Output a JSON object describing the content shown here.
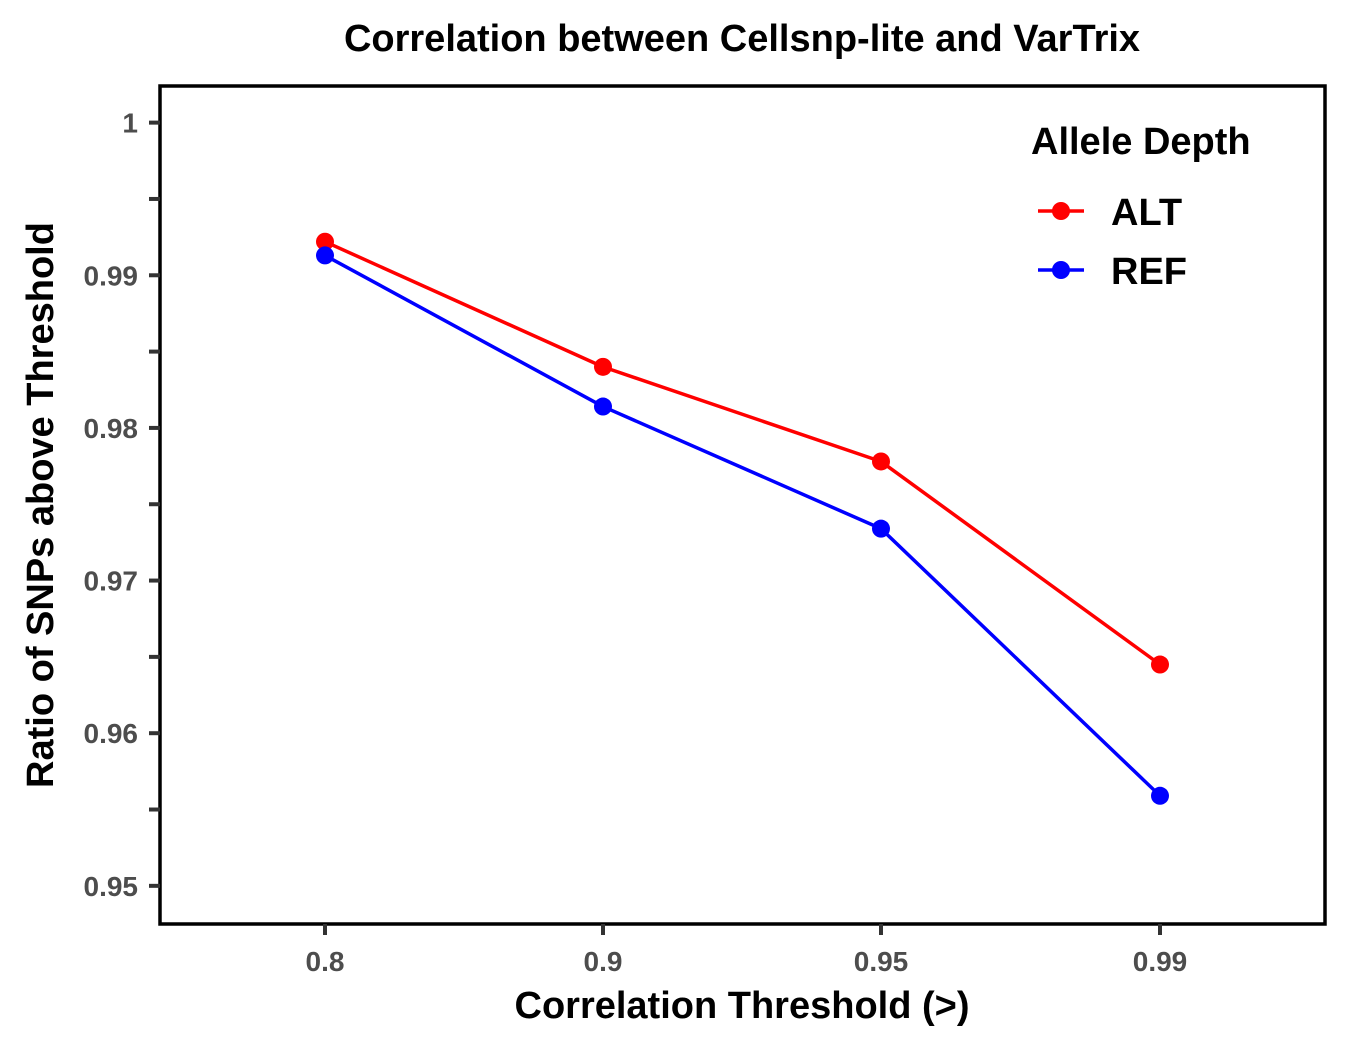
{
  "chart_data": {
    "type": "line",
    "title": "Correlation between Cellsnp-lite and VarTrix",
    "xlabel": "Correlation Threshold (>)",
    "ylabel": "Ratio of SNPs above Threshold",
    "categories": [
      "0.8",
      "0.9",
      "0.95",
      "0.99"
    ],
    "ylim": [
      0.9475,
      1.0024
    ],
    "y_ticks": [
      {
        "value": 0.95,
        "label": "0.95"
      },
      {
        "value": 0.96,
        "label": "0.96"
      },
      {
        "value": 0.97,
        "label": "0.97"
      },
      {
        "value": 0.98,
        "label": "0.98"
      },
      {
        "value": 0.99,
        "label": "0.99"
      },
      {
        "value": 1.0,
        "label": "1"
      }
    ],
    "y_minor_ticks": [
      0.955,
      0.965,
      0.975,
      0.985,
      0.995
    ],
    "legend": {
      "title": "Allele Depth",
      "position": "top-right"
    },
    "grid": false,
    "series": [
      {
        "name": "ALT",
        "color": "#ff0000",
        "values": [
          0.9922,
          0.984,
          0.9778,
          0.9645
        ]
      },
      {
        "name": "REF",
        "color": "#0000ff",
        "values": [
          0.9913,
          0.9814,
          0.9734,
          0.9559
        ]
      }
    ]
  }
}
